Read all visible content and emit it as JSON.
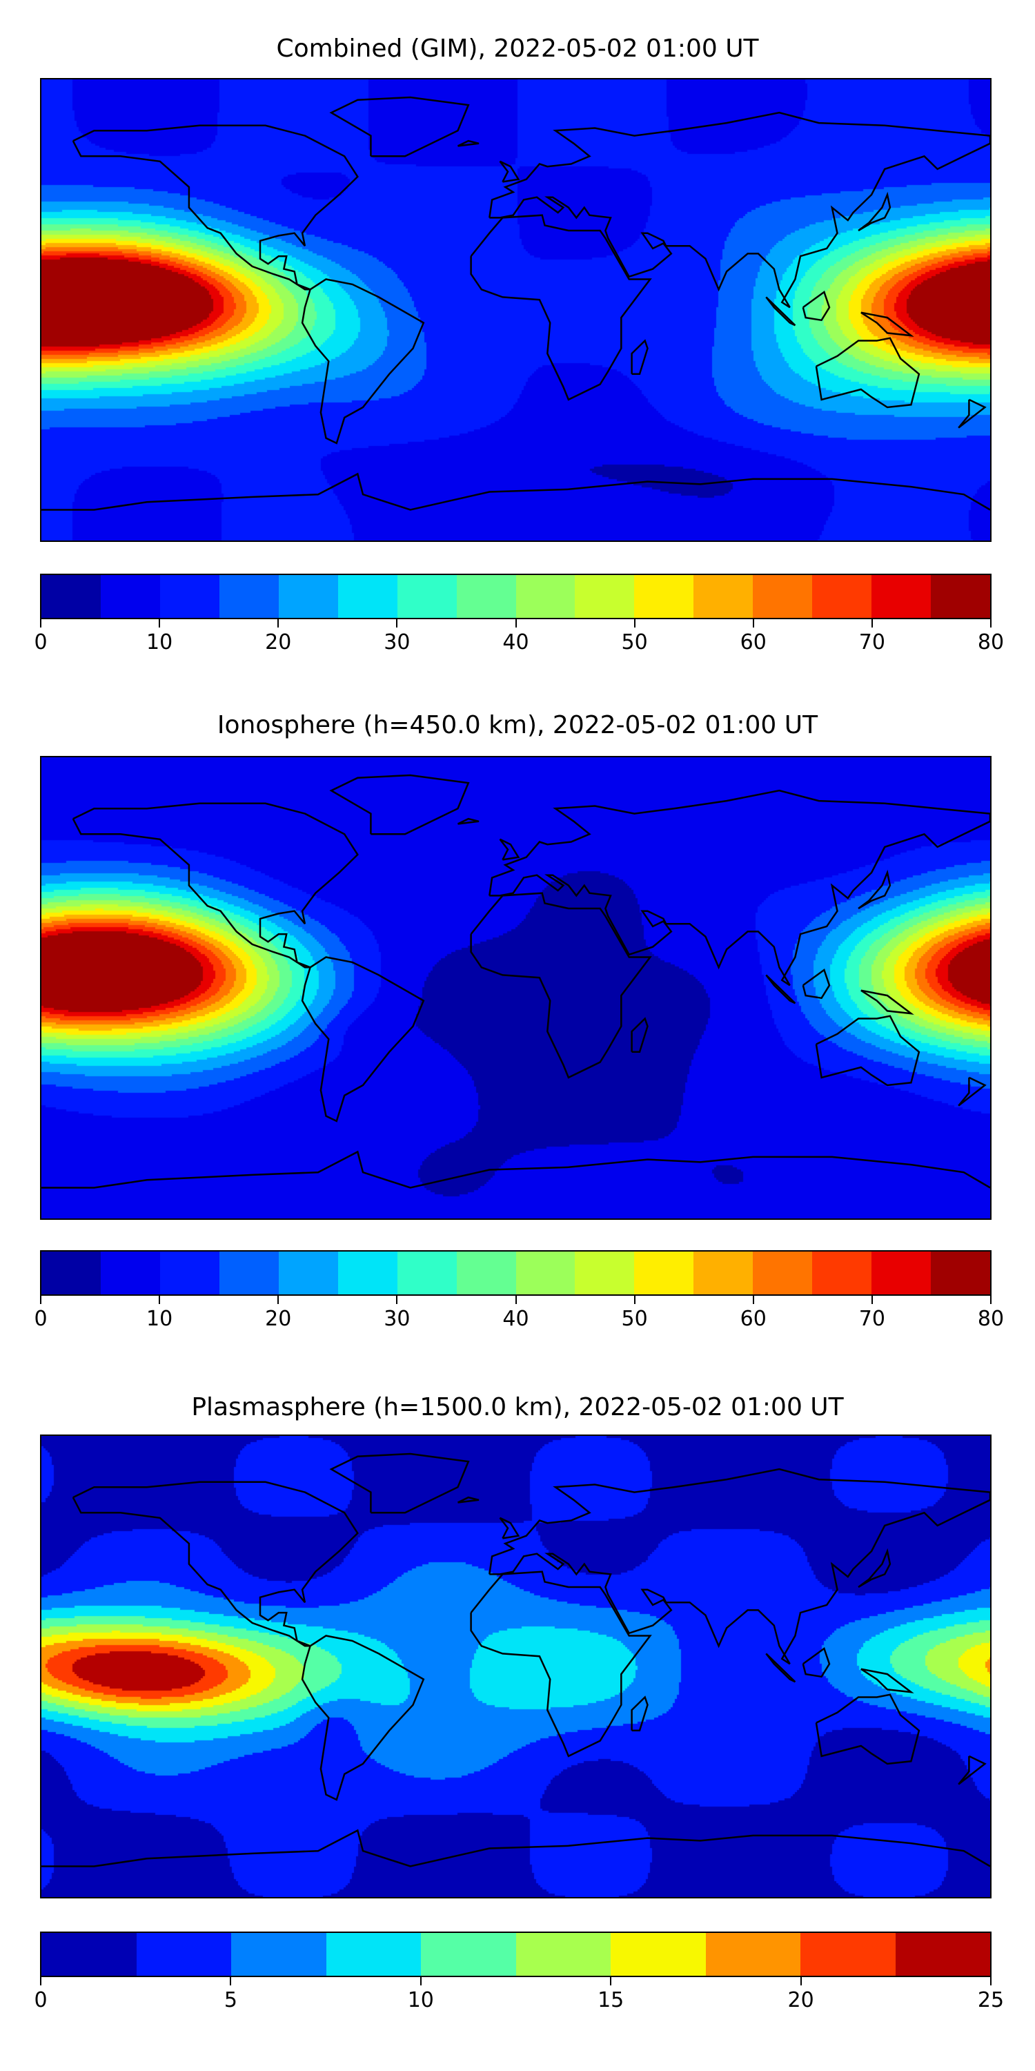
{
  "chart_data": [
    {
      "type": "heatmap",
      "title": "Combined (GIM), 2022-05-02 01:00 UT",
      "lon_range": [
        -180,
        180
      ],
      "lat_range": [
        -90,
        90
      ],
      "levels": [
        0,
        5,
        10,
        15,
        20,
        25,
        30,
        35,
        40,
        45,
        50,
        55,
        60,
        65,
        70,
        75,
        80
      ],
      "colors": [
        "#0000a5",
        "#0000ee",
        "#0018ff",
        "#0060ff",
        "#00a4ff",
        "#00e4f8",
        "#30ffc8",
        "#64ff92",
        "#9cff5a",
        "#c8ff2e",
        "#ffee00",
        "#ffb000",
        "#ff7400",
        "#ff3a00",
        "#e80000",
        "#a00000"
      ],
      "tick_labels": [
        "0",
        "10",
        "20",
        "30",
        "40",
        "50",
        "60",
        "70",
        "80"
      ],
      "base": 10,
      "features": [
        {
          "lon": -148,
          "lat": 5,
          "value": 62,
          "slon": 35,
          "slat": 16
        },
        {
          "lon": -110,
          "lat": -5,
          "value": 20,
          "slon": 30,
          "slat": 20
        },
        {
          "lon": 175,
          "lat": 2,
          "value": 50,
          "slon": 35,
          "slat": 20
        },
        {
          "lon": 130,
          "lat": -5,
          "value": 18,
          "slon": 35,
          "slat": 30
        },
        {
          "lon": 40,
          "lat": -65,
          "value": -6,
          "slon": 60,
          "slat": 12
        },
        {
          "lon": -60,
          "lat": -10,
          "value": 8,
          "slon": 25,
          "slat": 20
        }
      ]
    },
    {
      "type": "heatmap",
      "title": "Ionosphere  (h=450.0 km), 2022-05-02 01:00 UT",
      "lon_range": [
        -180,
        180
      ],
      "lat_range": [
        -90,
        90
      ],
      "levels": [
        0,
        5,
        10,
        15,
        20,
        25,
        30,
        35,
        40,
        45,
        50,
        55,
        60,
        65,
        70,
        75,
        80
      ],
      "colors": [
        "#0000a5",
        "#0000ee",
        "#0018ff",
        "#0060ff",
        "#00a4ff",
        "#00e4f8",
        "#30ffc8",
        "#64ff92",
        "#9cff5a",
        "#c8ff2e",
        "#ffee00",
        "#ffb000",
        "#ff7400",
        "#ff3a00",
        "#e80000",
        "#a00000"
      ],
      "tick_labels": [
        "0",
        "10",
        "20",
        "30",
        "40",
        "50",
        "60",
        "70",
        "80"
      ],
      "base": 7,
      "features": [
        {
          "lon": -148,
          "lat": 8,
          "value": 58,
          "slon": 38,
          "slat": 17
        },
        {
          "lon": -110,
          "lat": -5,
          "value": 15,
          "slon": 30,
          "slat": 22
        },
        {
          "lon": 178,
          "lat": 5,
          "value": 45,
          "slon": 40,
          "slat": 22
        },
        {
          "lon": 20,
          "lat": -20,
          "value": -5,
          "slon": 45,
          "slat": 35
        },
        {
          "lon": -60,
          "lat": -15,
          "value": -3,
          "slon": 12,
          "slat": 6
        }
      ]
    },
    {
      "type": "heatmap",
      "title": "Plasmasphere (h=1500.0 km), 2022-05-02 01:00 UT",
      "lon_range": [
        -180,
        180
      ],
      "lat_range": [
        -90,
        90
      ],
      "levels": [
        0,
        2.5,
        5,
        7.5,
        10,
        12.5,
        15,
        17.5,
        20,
        22.5,
        25
      ],
      "colors": [
        "#0000b4",
        "#0018ff",
        "#0080ff",
        "#00e4f8",
        "#55ffa6",
        "#a8ff4e",
        "#f8f800",
        "#ff9400",
        "#ff3a00",
        "#b40000"
      ],
      "tick_labels": [
        "0",
        "5",
        "10",
        "15",
        "20",
        "25"
      ],
      "base": 2,
      "features": [
        {
          "lon": -140,
          "lat": -2,
          "value": 19,
          "slon": 30,
          "slat": 12
        },
        {
          "lon": -100,
          "lat": -10,
          "value": 5,
          "slon": 40,
          "slat": 25
        },
        {
          "lon": 0,
          "lat": 0,
          "value": 6.5,
          "slon": 55,
          "slat": 25
        },
        {
          "lon": 175,
          "lat": 5,
          "value": 9,
          "slon": 35,
          "slat": 15
        },
        {
          "lon": -70,
          "lat": -20,
          "value": -3,
          "slon": 10,
          "slat": 8
        }
      ]
    }
  ]
}
